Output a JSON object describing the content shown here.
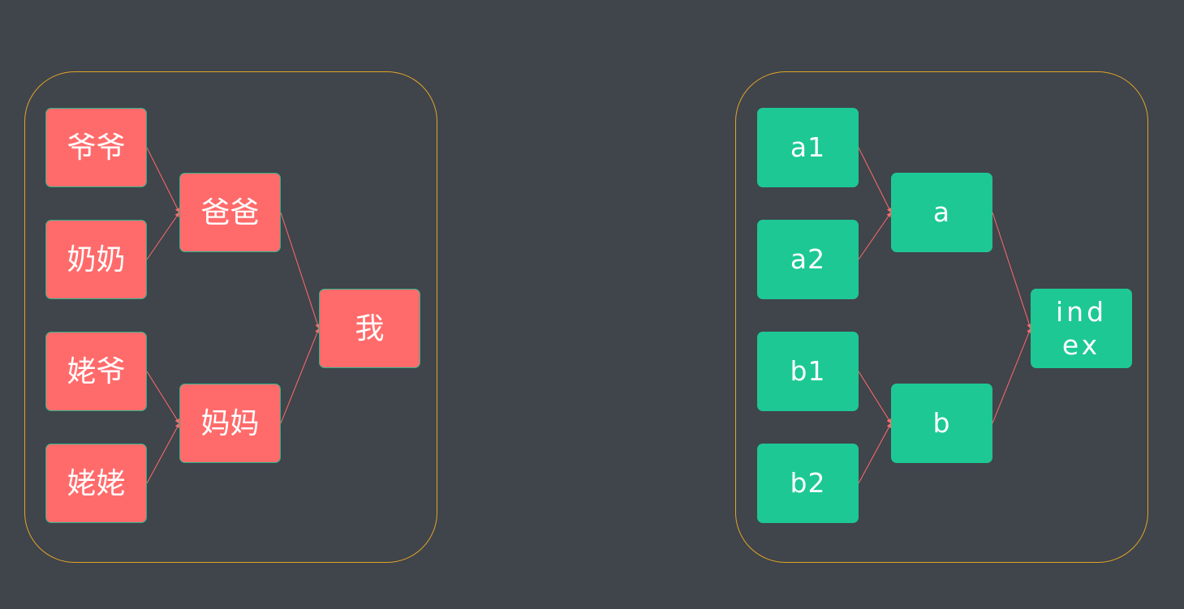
{
  "diagrams": [
    {
      "nodes": {
        "grandpa": "爷爷",
        "grandma": "奶奶",
        "maternal_grandpa": "姥爷",
        "maternal_grandma": "姥姥",
        "father": "爸爸",
        "mother": "妈妈",
        "me": "我"
      }
    },
    {
      "nodes": {
        "a1": "a1",
        "a2": "a2",
        "b1": "b1",
        "b2": "b2",
        "a": "a",
        "b": "b",
        "index": "index"
      }
    }
  ],
  "colors": {
    "background": "#40444b",
    "frame": "#e0a526",
    "red_node": "#ff6b6b",
    "red_node_border": "#2bb38a",
    "green_node": "#1dc894",
    "edge": "#ff6b6b",
    "text": "#ffffff"
  }
}
